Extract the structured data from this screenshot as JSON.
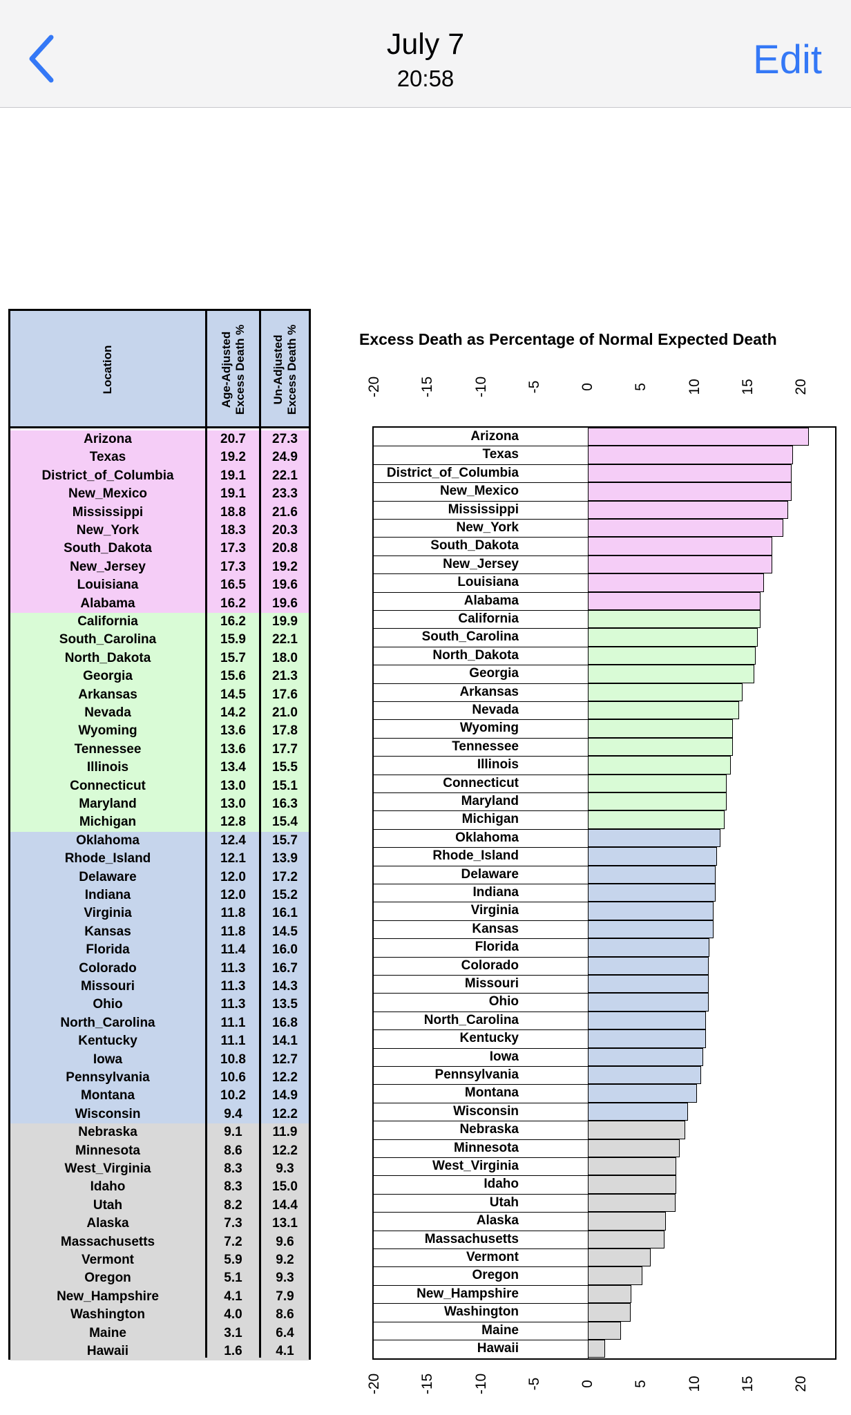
{
  "nav": {
    "title": "July 7",
    "subtitle": "20:58",
    "edit_label": "Edit",
    "back_icon": "chevron-left-icon",
    "accent_color": "#3478f6"
  },
  "table": {
    "headers": {
      "location": "Location",
      "age_line1": "Age-Adjusted",
      "age_line2": "Excess Death %",
      "un_line1": "Un-Adjusted",
      "un_line2": "Excess Death %"
    },
    "group_colors": [
      "#f5cdf7",
      "#d9fbd6",
      "#c6d5ec",
      "#d9d9d9"
    ],
    "rows": [
      {
        "location": "Arizona",
        "age": "20.7",
        "un": "27.3",
        "group": 0
      },
      {
        "location": "Texas",
        "age": "19.2",
        "un": "24.9",
        "group": 0
      },
      {
        "location": "District_of_Columbia",
        "age": "19.1",
        "un": "22.1",
        "group": 0
      },
      {
        "location": "New_Mexico",
        "age": "19.1",
        "un": "23.3",
        "group": 0
      },
      {
        "location": "Mississippi",
        "age": "18.8",
        "un": "21.6",
        "group": 0
      },
      {
        "location": "New_York",
        "age": "18.3",
        "un": "20.3",
        "group": 0
      },
      {
        "location": "South_Dakota",
        "age": "17.3",
        "un": "20.8",
        "group": 0
      },
      {
        "location": "New_Jersey",
        "age": "17.3",
        "un": "19.2",
        "group": 0
      },
      {
        "location": "Louisiana",
        "age": "16.5",
        "un": "19.6",
        "group": 0
      },
      {
        "location": "Alabama",
        "age": "16.2",
        "un": "19.6",
        "group": 0
      },
      {
        "location": "California",
        "age": "16.2",
        "un": "19.9",
        "group": 1
      },
      {
        "location": "South_Carolina",
        "age": "15.9",
        "un": "22.1",
        "group": 1
      },
      {
        "location": "North_Dakota",
        "age": "15.7",
        "un": "18.0",
        "group": 1
      },
      {
        "location": "Georgia",
        "age": "15.6",
        "un": "21.3",
        "group": 1
      },
      {
        "location": "Arkansas",
        "age": "14.5",
        "un": "17.6",
        "group": 1
      },
      {
        "location": "Nevada",
        "age": "14.2",
        "un": "21.0",
        "group": 1
      },
      {
        "location": "Wyoming",
        "age": "13.6",
        "un": "17.8",
        "group": 1
      },
      {
        "location": "Tennessee",
        "age": "13.6",
        "un": "17.7",
        "group": 1
      },
      {
        "location": "Illinois",
        "age": "13.4",
        "un": "15.5",
        "group": 1
      },
      {
        "location": "Connecticut",
        "age": "13.0",
        "un": "15.1",
        "group": 1
      },
      {
        "location": "Maryland",
        "age": "13.0",
        "un": "16.3",
        "group": 1
      },
      {
        "location": "Michigan",
        "age": "12.8",
        "un": "15.4",
        "group": 1
      },
      {
        "location": "Oklahoma",
        "age": "12.4",
        "un": "15.7",
        "group": 2
      },
      {
        "location": "Rhode_Island",
        "age": "12.1",
        "un": "13.9",
        "group": 2
      },
      {
        "location": "Delaware",
        "age": "12.0",
        "un": "17.2",
        "group": 2
      },
      {
        "location": "Indiana",
        "age": "12.0",
        "un": "15.2",
        "group": 2
      },
      {
        "location": "Virginia",
        "age": "11.8",
        "un": "16.1",
        "group": 2
      },
      {
        "location": "Kansas",
        "age": "11.8",
        "un": "14.5",
        "group": 2
      },
      {
        "location": "Florida",
        "age": "11.4",
        "un": "16.0",
        "group": 2
      },
      {
        "location": "Colorado",
        "age": "11.3",
        "un": "16.7",
        "group": 2
      },
      {
        "location": "Missouri",
        "age": "11.3",
        "un": "14.3",
        "group": 2
      },
      {
        "location": "Ohio",
        "age": "11.3",
        "un": "13.5",
        "group": 2
      },
      {
        "location": "North_Carolina",
        "age": "11.1",
        "un": "16.8",
        "group": 2
      },
      {
        "location": "Kentucky",
        "age": "11.1",
        "un": "14.1",
        "group": 2
      },
      {
        "location": "Iowa",
        "age": "10.8",
        "un": "12.7",
        "group": 2
      },
      {
        "location": "Pennsylvania",
        "age": "10.6",
        "un": "12.2",
        "group": 2
      },
      {
        "location": "Montana",
        "age": "10.2",
        "un": "14.9",
        "group": 2
      },
      {
        "location": "Wisconsin",
        "age": "9.4",
        "un": "12.2",
        "group": 2
      },
      {
        "location": "Nebraska",
        "age": "9.1",
        "un": "11.9",
        "group": 3
      },
      {
        "location": "Minnesota",
        "age": "8.6",
        "un": "12.2",
        "group": 3
      },
      {
        "location": "West_Virginia",
        "age": "8.3",
        "un": "9.3",
        "group": 3
      },
      {
        "location": "Idaho",
        "age": "8.3",
        "un": "15.0",
        "group": 3
      },
      {
        "location": "Utah",
        "age": "8.2",
        "un": "14.4",
        "group": 3
      },
      {
        "location": "Alaska",
        "age": "7.3",
        "un": "13.1",
        "group": 3
      },
      {
        "location": "Massachusetts",
        "age": "7.2",
        "un": "9.6",
        "group": 3
      },
      {
        "location": "Vermont",
        "age": "5.9",
        "un": "9.2",
        "group": 3
      },
      {
        "location": "Oregon",
        "age": "5.1",
        "un": "9.3",
        "group": 3
      },
      {
        "location": "New_Hampshire",
        "age": "4.1",
        "un": "7.9",
        "group": 3
      },
      {
        "location": "Washington",
        "age": "4.0",
        "un": "8.6",
        "group": 3
      },
      {
        "location": "Maine",
        "age": "3.1",
        "un": "6.4",
        "group": 3
      },
      {
        "location": "Hawaii",
        "age": "1.6",
        "un": "4.1",
        "group": 3
      }
    ]
  },
  "chart_data": {
    "type": "bar",
    "orientation": "horizontal",
    "title": "Excess  Death as Percentage  of Normal Expected  Death",
    "xlim": [
      -20,
      23
    ],
    "xticks": [
      "-20",
      "-15",
      "-10",
      "-5",
      "0",
      "5",
      "10",
      "15",
      "20"
    ],
    "xtick_values": [
      -20,
      -15,
      -10,
      -5,
      0,
      5,
      10,
      15,
      20
    ],
    "xtick_positions": "top-and-bottom",
    "categories": [
      "Arizona",
      "Texas",
      "District_of_Columbia",
      "New_Mexico",
      "Mississippi",
      "New_York",
      "South_Dakota",
      "New_Jersey",
      "Louisiana",
      "Alabama",
      "California",
      "South_Carolina",
      "North_Dakota",
      "Georgia",
      "Arkansas",
      "Nevada",
      "Wyoming",
      "Tennessee",
      "Illinois",
      "Connecticut",
      "Maryland",
      "Michigan",
      "Oklahoma",
      "Rhode_Island",
      "Delaware",
      "Indiana",
      "Virginia",
      "Kansas",
      "Florida",
      "Colorado",
      "Missouri",
      "Ohio",
      "North_Carolina",
      "Kentucky",
      "Iowa",
      "Pennsylvania",
      "Montana",
      "Wisconsin",
      "Nebraska",
      "Minnesota",
      "West_Virginia",
      "Idaho",
      "Utah",
      "Alaska",
      "Massachusetts",
      "Vermont",
      "Oregon",
      "New_Hampshire",
      "Washington",
      "Maine",
      "Hawaii"
    ],
    "values": [
      20.7,
      19.2,
      19.1,
      19.1,
      18.8,
      18.3,
      17.3,
      17.3,
      16.5,
      16.2,
      16.2,
      15.9,
      15.7,
      15.6,
      14.5,
      14.2,
      13.6,
      13.6,
      13.4,
      13.0,
      13.0,
      12.8,
      12.4,
      12.1,
      12.0,
      12.0,
      11.8,
      11.8,
      11.4,
      11.3,
      11.3,
      11.3,
      11.1,
      11.1,
      10.8,
      10.6,
      10.2,
      9.4,
      9.1,
      8.6,
      8.3,
      8.3,
      8.2,
      7.3,
      7.2,
      5.9,
      5.1,
      4.1,
      4.0,
      3.1,
      1.6
    ],
    "display_labels": [
      "Arizona",
      "Texas",
      "District_of_Columbia",
      "New_Mexico",
      "Mississippi",
      "New_York",
      "South_Dakota",
      "New_Jersey",
      "Louisiana",
      "Alabama",
      "California",
      "South_Carolina",
      "North_Dakota",
      "Georgia",
      "Arkansas",
      "Nevada",
      "Wyoming",
      "Tennessee",
      "Illinois",
      "Connecticut",
      "Maryland",
      "Michigan",
      "Oklahoma",
      "Rhode_Island",
      "Delaware",
      "Indiana",
      "Virginia",
      "Kansas",
      "Florida",
      "Colorado",
      "Missouri",
      "Ohio",
      "North_Carolina",
      "Kentucky",
      "Iowa",
      "Pennsylvania",
      "Montana",
      "Wisconsin",
      "Nebraska",
      "Minnesota",
      "West_Virginia",
      "Idaho",
      "Utah",
      "Alaska",
      "Massachusetts",
      "Vermont",
      "Oregon",
      "New_Hampshire",
      "Washington",
      "Maine",
      "Hawaii"
    ],
    "grid": false
  }
}
